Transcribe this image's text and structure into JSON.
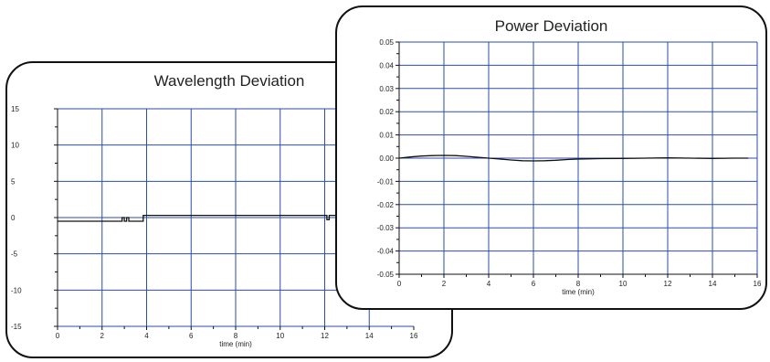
{
  "colors": {
    "grid": "#2a4fa8",
    "axis": "#111111",
    "trace": "#111111",
    "border": "#111111"
  },
  "chart_data": [
    {
      "type": "line",
      "title": "Wavelength Deviation",
      "xlabel": "time (min)",
      "ylabel": "",
      "xlim": [
        0,
        16
      ],
      "ylim": [
        -15,
        15
      ],
      "x_ticks": [
        0,
        2,
        4,
        6,
        8,
        10,
        12,
        14,
        16
      ],
      "x_tick_labels": [
        "0",
        "2",
        "4",
        "6",
        "8",
        "10",
        "12",
        "14",
        "16"
      ],
      "y_ticks": [
        15,
        10,
        5,
        0,
        -5,
        -10,
        -15
      ],
      "y_tick_labels": [
        "15",
        "10",
        "5",
        "0",
        "-5",
        "-10",
        "-15"
      ],
      "grid": true,
      "series": [
        {
          "x": [
            0,
            2.9,
            2.9,
            3.0,
            3.0,
            3.1,
            3.1,
            3.2,
            3.2,
            3.85,
            3.85,
            12.1,
            12.1,
            12.2,
            12.2,
            12.6
          ],
          "y": [
            -0.5,
            -0.5,
            0.0,
            0.0,
            -0.5,
            -0.5,
            0.0,
            0.0,
            -0.5,
            -0.5,
            0.3,
            0.3,
            -0.3,
            -0.3,
            0.3,
            0.3
          ]
        }
      ]
    },
    {
      "type": "line",
      "title": "Power Deviation",
      "xlabel": "time (min)",
      "ylabel": "",
      "xlim": [
        0,
        16
      ],
      "ylim": [
        -0.05,
        0.05
      ],
      "x_ticks": [
        0,
        2,
        4,
        6,
        8,
        10,
        12,
        14,
        16
      ],
      "x_tick_labels": [
        "0",
        "2",
        "4",
        "6",
        "8",
        "10",
        "12",
        "14",
        "16"
      ],
      "y_ticks": [
        0.05,
        0.04,
        0.03,
        0.02,
        0.01,
        0.0,
        -0.01,
        -0.02,
        -0.03,
        -0.04,
        -0.05
      ],
      "y_tick_labels": [
        "0.05",
        "0.04",
        "0.03",
        "0.02",
        "0.01",
        "0.00",
        "-0.01",
        "-0.02",
        "-0.03",
        "-0.04",
        "-0.05"
      ],
      "grid": true,
      "series": [
        {
          "x": [
            0,
            0.5,
            1.0,
            1.5,
            2.0,
            2.5,
            3.0,
            3.5,
            4.0,
            4.5,
            5.0,
            5.5,
            6.0,
            6.5,
            7.0,
            7.5,
            8.0,
            9.0,
            10.0,
            11.0,
            12.0,
            13.0,
            14.0,
            15.0,
            15.6
          ],
          "y": [
            0.0,
            0.0005,
            0.0009,
            0.0011,
            0.0012,
            0.0011,
            0.0008,
            0.0004,
            0.0,
            -0.0004,
            -0.0008,
            -0.0011,
            -0.0012,
            -0.0011,
            -0.0009,
            -0.0006,
            -0.0004,
            -0.0002,
            -0.0001,
            0.0,
            0.0001,
            0.0,
            -0.0001,
            0.0,
            0.0
          ]
        }
      ]
    }
  ]
}
